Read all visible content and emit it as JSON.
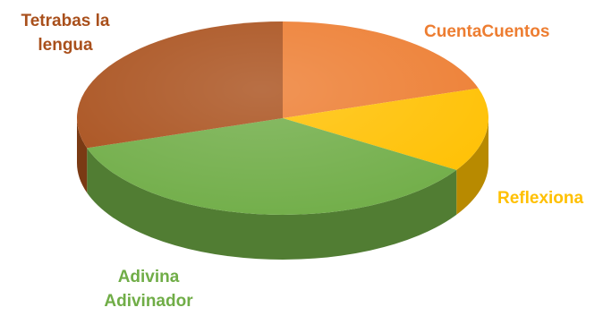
{
  "chart_data": {
    "type": "pie",
    "title": "",
    "three_d": true,
    "legend": "none",
    "slices": [
      {
        "label_lines": [
          "CuentaCuentos"
        ],
        "value": 20,
        "color": "#ed7d31"
      },
      {
        "label_lines": [
          "Reflexiona"
        ],
        "value": 14,
        "color": "#ffc000"
      },
      {
        "label_lines": [
          "Adivina",
          "Adivinador"
        ],
        "value": 36,
        "color": "#70ad47"
      },
      {
        "label_lines": [
          "Tetrabas la",
          "lengua"
        ],
        "value": 30,
        "color": "#a9501c"
      }
    ]
  }
}
